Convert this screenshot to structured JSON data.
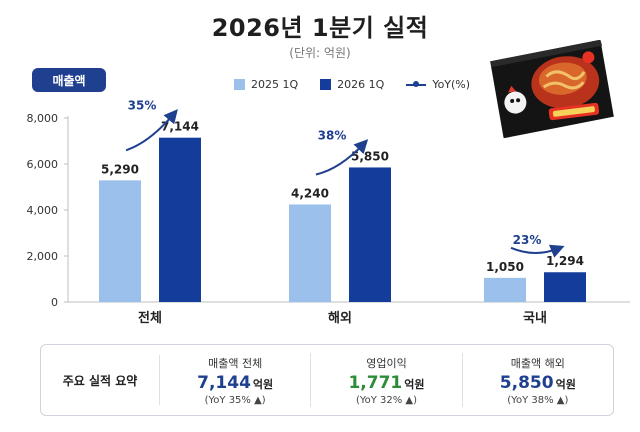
{
  "title": "2026년 1분기 실적",
  "unit": "(단위: 억원)",
  "badge": "매출액",
  "legend": {
    "s2025": "2025 1Q",
    "s2026": "2026 1Q",
    "yoy": "YoY(%)"
  },
  "colors": {
    "s2025": "#9cc0ec",
    "s2026": "#143c9a",
    "accent": "#1f3f8f",
    "green": "#2e8b3a"
  },
  "chart_data": {
    "type": "bar",
    "categories": [
      "전체",
      "해외",
      "국내"
    ],
    "series": [
      {
        "name": "2025 1Q",
        "values": [
          5290,
          4240,
          1050
        ]
      },
      {
        "name": "2026 1Q",
        "values": [
          7144,
          5850,
          1294
        ]
      }
    ],
    "value_labels": [
      [
        "5,290",
        "4,240",
        "1,050"
      ],
      [
        "7,144",
        "5,850",
        "1,294"
      ]
    ],
    "yoy_labels": [
      "35%",
      "38%",
      "23%"
    ],
    "ylim": [
      0,
      8000
    ],
    "yticks": [
      0,
      2000,
      4000,
      6000,
      8000
    ],
    "ytick_labels": [
      "0",
      "2,000",
      "4,000",
      "6,000",
      "8,000"
    ],
    "grid": false,
    "legend": "top"
  },
  "summary": {
    "title": "주요 실적 요약",
    "items": [
      {
        "label": "매출액 전체",
        "value": "7,144",
        "unit": "억원",
        "sub": "(YoY 35% ▲)",
        "color": "#1f3f8f"
      },
      {
        "label": "영업이익",
        "value": "1,771",
        "unit": "억원",
        "sub": "(YoY 32% ▲)",
        "color": "#2e8b3a"
      },
      {
        "label": "매출액 해외",
        "value": "5,850",
        "unit": "억원",
        "sub": "(YoY 38% ▲)",
        "color": "#1f3f8f"
      }
    ]
  }
}
